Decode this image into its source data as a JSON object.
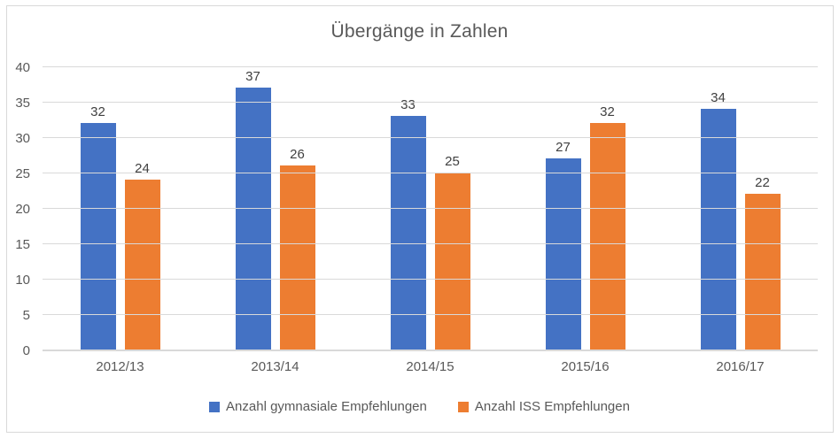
{
  "chart_data": {
    "type": "bar",
    "title": "Übergänge in Zahlen",
    "categories": [
      "2012/13",
      "2013/14",
      "2014/15",
      "2015/16",
      "2016/17"
    ],
    "series": [
      {
        "name": "Anzahl gymnasiale Empfehlungen",
        "color": "#4472C4",
        "values": [
          32,
          37,
          33,
          27,
          34
        ]
      },
      {
        "name": "Anzahl ISS Empfehlungen",
        "color": "#ED7D31",
        "values": [
          24,
          26,
          25,
          32,
          22
        ]
      }
    ],
    "ylim": [
      0,
      40
    ],
    "yticks": [
      0,
      5,
      10,
      15,
      20,
      25,
      30,
      35,
      40
    ],
    "grid": true,
    "legend_position": "bottom",
    "data_labels": true
  },
  "colors": {
    "title": "#595959",
    "axis_label": "#595959",
    "data_label": "#404040",
    "gridline": "#D9D9D9",
    "axis_line": "#D9D9D9",
    "frame_border": "#D9D9D9",
    "background": "#FFFFFF"
  }
}
